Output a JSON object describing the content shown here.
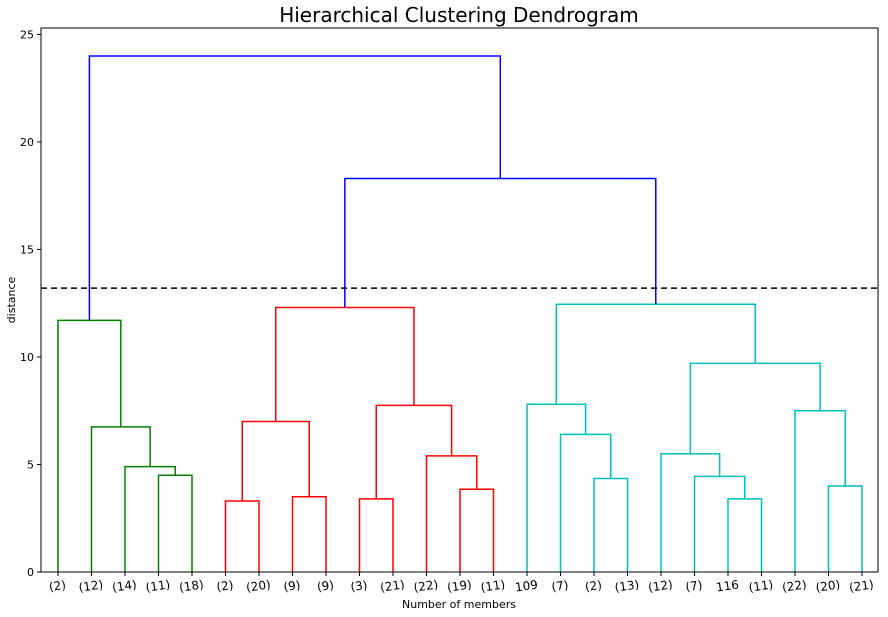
{
  "chart_data": {
    "type": "dendrogram",
    "title": "Hierarchical Clustering Dendrogram",
    "xlabel": "Number of members",
    "ylabel": "distance",
    "ylim": [
      0,
      25.3
    ],
    "yticks": [
      0,
      5,
      10,
      15,
      20,
      25
    ],
    "cut_line": {
      "y": 13.2,
      "style": "dashed",
      "color": "#000000"
    },
    "leaves": [
      "(2)",
      "(12)",
      "(14)",
      "(11)",
      "(18)",
      "(2)",
      "(20)",
      "(9)",
      "(9)",
      "(3)",
      "(21)",
      "(22)",
      "(19)",
      "(11)",
      "109",
      "(7)",
      "(2)",
      "(13)",
      "(12)",
      "(7)",
      "116",
      "(11)",
      "(22)",
      "(20)",
      "(21)"
    ],
    "colors": {
      "green": "#008000",
      "red": "#ff0000",
      "cyan": "#00bfbf",
      "blue": "#0000ff"
    },
    "links": [
      {
        "left": 3,
        "right": 4,
        "height": 4.5,
        "color": "green"
      },
      {
        "left": 2,
        "right": "L0",
        "height": 4.9,
        "color": "green"
      },
      {
        "left": 1,
        "right": "L1",
        "height": 6.75,
        "color": "green"
      },
      {
        "left": 0,
        "right": "L2",
        "height": 11.7,
        "color": "green"
      },
      {
        "left": 5,
        "right": 6,
        "height": 3.3,
        "color": "red"
      },
      {
        "left": 7,
        "right": 8,
        "height": 3.5,
        "color": "red"
      },
      {
        "left": "L4",
        "right": "L5",
        "height": 7.0,
        "color": "red"
      },
      {
        "left": 9,
        "right": 10,
        "height": 3.4,
        "color": "red"
      },
      {
        "left": 12,
        "right": 13,
        "height": 3.85,
        "color": "red"
      },
      {
        "left": 11,
        "right": "L8",
        "height": 5.4,
        "color": "red"
      },
      {
        "left": "L7",
        "right": "L9",
        "height": 7.75,
        "color": "red"
      },
      {
        "left": "L6",
        "right": "L10",
        "height": 12.3,
        "color": "red"
      },
      {
        "left": 16,
        "right": 17,
        "height": 4.35,
        "color": "cyan"
      },
      {
        "left": 15,
        "right": "L12",
        "height": 6.4,
        "color": "cyan"
      },
      {
        "left": 14,
        "right": "L13",
        "height": 7.8,
        "color": "cyan"
      },
      {
        "left": 20,
        "right": 21,
        "height": 3.4,
        "color": "cyan"
      },
      {
        "left": 19,
        "right": "L15",
        "height": 4.45,
        "color": "cyan"
      },
      {
        "left": 18,
        "right": "L16",
        "height": 5.5,
        "color": "cyan"
      },
      {
        "left": 23,
        "right": 24,
        "height": 4.0,
        "color": "cyan"
      },
      {
        "left": 22,
        "right": "L18",
        "height": 7.5,
        "color": "cyan"
      },
      {
        "left": "L17",
        "right": "L19",
        "height": 9.7,
        "color": "cyan"
      },
      {
        "left": "L14",
        "right": "L20",
        "height": 12.45,
        "color": "cyan"
      },
      {
        "left": "L11",
        "right": "L21",
        "height": 18.3,
        "color": "blue"
      },
      {
        "left": "L3",
        "right": "L22",
        "height": 24.0,
        "color": "blue"
      }
    ]
  }
}
